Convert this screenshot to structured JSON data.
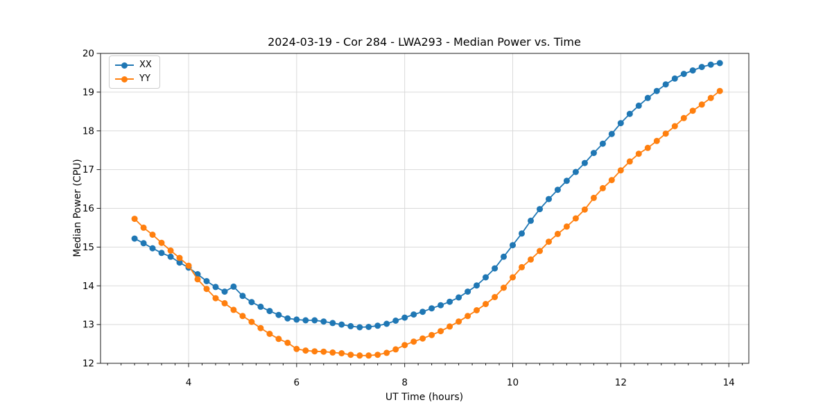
{
  "chart_data": {
    "type": "line",
    "title": "2024-03-19 - Cor 284 - LWA293 - Median Power vs. Time",
    "xlabel": "UT Time (hours)",
    "ylabel": "Median Power (CPU)",
    "xlim": [
      2.37,
      14.37
    ],
    "ylim": [
      12,
      20
    ],
    "xticks": [
      4,
      6,
      8,
      10,
      12,
      14
    ],
    "yticks": [
      12,
      13,
      14,
      15,
      16,
      17,
      18,
      19,
      20
    ],
    "minor_xtick_step": 0.25,
    "grid": true,
    "legend_position": "upper left",
    "x": [
      3.0,
      3.167,
      3.333,
      3.5,
      3.667,
      3.833,
      4.0,
      4.167,
      4.333,
      4.5,
      4.667,
      4.833,
      5.0,
      5.167,
      5.333,
      5.5,
      5.667,
      5.833,
      6.0,
      6.167,
      6.333,
      6.5,
      6.667,
      6.833,
      7.0,
      7.167,
      7.333,
      7.5,
      7.667,
      7.833,
      8.0,
      8.167,
      8.333,
      8.5,
      8.667,
      8.833,
      9.0,
      9.167,
      9.333,
      9.5,
      9.667,
      9.833,
      10.0,
      10.167,
      10.333,
      10.5,
      10.667,
      10.833,
      11.0,
      11.167,
      11.333,
      11.5,
      11.667,
      11.833,
      12.0,
      12.167,
      12.333,
      12.5,
      12.667,
      12.833,
      13.0,
      13.167,
      13.333,
      13.5,
      13.667,
      13.833
    ],
    "series": [
      {
        "name": "XX",
        "color": "#1f77b4",
        "values": [
          15.22,
          15.1,
          14.97,
          14.85,
          14.75,
          14.6,
          14.47,
          14.3,
          14.12,
          13.97,
          13.85,
          13.98,
          13.74,
          13.58,
          13.46,
          13.35,
          13.25,
          13.16,
          13.13,
          13.11,
          13.11,
          13.08,
          13.04,
          13.0,
          12.96,
          12.93,
          12.94,
          12.97,
          13.02,
          13.1,
          13.18,
          13.26,
          13.33,
          13.42,
          13.5,
          13.59,
          13.7,
          13.85,
          14.01,
          14.22,
          14.45,
          14.75,
          15.05,
          15.35,
          15.68,
          15.98,
          16.24,
          16.48,
          16.71,
          16.94,
          17.17,
          17.43,
          17.67,
          17.92,
          18.2,
          18.44,
          18.65,
          18.85,
          19.03,
          19.2,
          19.35,
          19.47,
          19.56,
          19.65,
          19.71,
          19.75
        ]
      },
      {
        "name": "YY",
        "color": "#ff7f0e",
        "values": [
          15.73,
          15.5,
          15.32,
          15.11,
          14.91,
          14.72,
          14.52,
          14.17,
          13.92,
          13.68,
          13.55,
          13.38,
          13.22,
          13.07,
          12.91,
          12.76,
          12.63,
          12.53,
          12.37,
          12.33,
          12.31,
          12.3,
          12.28,
          12.26,
          12.22,
          12.2,
          12.2,
          12.22,
          12.27,
          12.36,
          12.47,
          12.56,
          12.64,
          12.73,
          12.83,
          12.95,
          13.08,
          13.22,
          13.37,
          13.53,
          13.71,
          13.95,
          14.22,
          14.48,
          14.68,
          14.9,
          15.14,
          15.34,
          15.53,
          15.74,
          15.97,
          16.27,
          16.52,
          16.73,
          16.98,
          17.21,
          17.41,
          17.56,
          17.74,
          17.93,
          18.12,
          18.33,
          18.52,
          18.68,
          18.85,
          19.03
        ]
      }
    ]
  },
  "colors": {
    "grid": "#d9d9d9",
    "spine": "#1a1a1a",
    "tick": "#1a1a1a",
    "background": "#ffffff"
  }
}
